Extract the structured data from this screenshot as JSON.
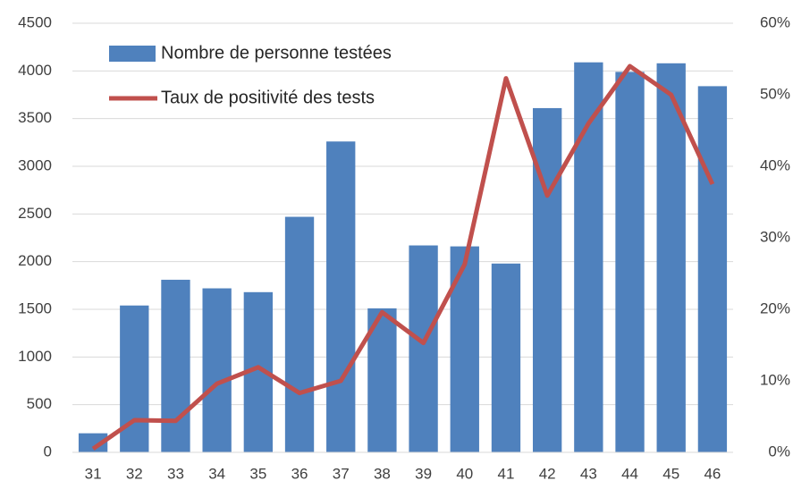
{
  "chart_data": {
    "type": "bar_line",
    "categories": [
      "31",
      "32",
      "33",
      "34",
      "35",
      "36",
      "37",
      "38",
      "39",
      "40",
      "41",
      "42",
      "43",
      "44",
      "45",
      "46"
    ],
    "series": [
      {
        "name": "Nombre de personne testées",
        "type": "bar",
        "color": "#4f81bd",
        "values": [
          200,
          1540,
          1810,
          1720,
          1680,
          2470,
          3260,
          1510,
          2170,
          2160,
          1980,
          3610,
          4090,
          3990,
          4080,
          3840
        ]
      },
      {
        "name": "Taux de positivité des tests",
        "type": "line",
        "axis": "y2",
        "color": "#c0504d",
        "values": [
          0.5,
          4.5,
          4.4,
          9.6,
          11.9,
          8.3,
          10,
          19.6,
          15.3,
          26.3,
          52.3,
          35.9,
          46,
          54,
          50,
          37.5
        ]
      }
    ],
    "ylim": [
      0,
      4500
    ],
    "yticks": [
      0,
      500,
      1000,
      1500,
      2000,
      2500,
      3000,
      3500,
      4000,
      4500
    ],
    "y2lim": [
      0,
      60
    ],
    "y2ticks": [
      {
        "value": 0,
        "label": "0%"
      },
      {
        "value": 10,
        "label": "10%"
      },
      {
        "value": 20,
        "label": "20%"
      },
      {
        "value": 30,
        "label": "30%"
      },
      {
        "value": 40,
        "label": "40%"
      },
      {
        "value": 50,
        "label": "50%"
      },
      {
        "value": 60,
        "label": "60%"
      }
    ],
    "grid": true,
    "legend": "upper left"
  }
}
